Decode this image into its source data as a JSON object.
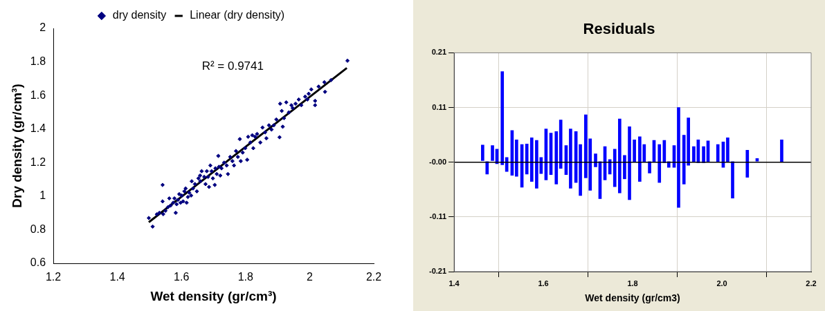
{
  "chart_data": [
    {
      "type": "scatter",
      "xlabel": "Wet density (gr/cm³)",
      "ylabel": "Dry density (gr/cm³)",
      "xlim": [
        1.2,
        2.2
      ],
      "xticks": [
        1.2,
        1.4,
        1.6,
        1.8,
        2,
        2.2
      ],
      "ylim": [
        0.6,
        2
      ],
      "yticks": [
        0.6,
        0.8,
        1,
        1.2,
        1.4,
        1.6,
        1.8,
        2
      ],
      "grid": false,
      "legend": "top",
      "annotations": [
        "R² = 0.9741"
      ],
      "series": [
        {
          "name": "dry density",
          "type": "scatter",
          "marker": "diamond",
          "color": "#000080",
          "x": [
            1.498,
            1.51,
            1.523,
            1.531,
            1.541,
            1.541,
            1.543,
            1.55,
            1.558,
            1.562,
            1.566,
            1.574,
            1.578,
            1.582,
            1.585,
            1.589,
            1.593,
            1.597,
            1.601,
            1.605,
            1.609,
            1.613,
            1.616,
            1.62,
            1.624,
            1.63,
            1.632,
            1.636,
            1.642,
            1.648,
            1.653,
            1.658,
            1.659,
            1.663,
            1.671,
            1.675,
            1.679,
            1.683,
            1.686,
            1.69,
            1.694,
            1.698,
            1.704,
            1.706,
            1.71,
            1.715,
            1.717,
            1.721,
            1.725,
            1.733,
            1.741,
            1.745,
            1.752,
            1.759,
            1.764,
            1.77,
            1.776,
            1.782,
            1.785,
            1.791,
            1.799,
            1.805,
            1.808,
            1.815,
            1.821,
            1.824,
            1.83,
            1.836,
            1.846,
            1.853,
            1.861,
            1.865,
            1.873,
            1.881,
            1.888,
            1.896,
            1.906,
            1.908,
            1.913,
            1.916,
            1.92,
            1.927,
            1.935,
            1.943,
            1.947,
            1.956,
            1.966,
            1.974,
            1.986,
            1.993,
            1.997,
            2.005,
            2.017,
            2.017,
            2.028,
            2.046,
            2.048,
            2.067,
            2.118
          ],
          "values": [
            0.87,
            0.819,
            0.892,
            0.901,
            1.067,
            0.969,
            0.893,
            0.913,
            0.935,
            0.987,
            0.944,
            0.961,
            0.987,
            0.901,
            0.952,
            0.978,
            1.012,
            0.961,
            1.004,
            0.969,
            1.029,
            1.046,
            0.961,
            0.995,
            1.021,
            1.004,
            1.089,
            1.046,
            1.072,
            1.029,
            1.106,
            1.123,
            1.089,
            1.149,
            1.115,
            1.072,
            1.149,
            1.115,
            1.055,
            1.183,
            1.149,
            1.106,
            1.067,
            1.166,
            1.132,
            1.24,
            1.175,
            1.123,
            1.166,
            1.2,
            1.183,
            1.132,
            1.234,
            1.209,
            1.183,
            1.269,
            1.234,
            1.34,
            1.209,
            1.26,
            1.286,
            1.217,
            1.354,
            1.32,
            1.363,
            1.286,
            1.354,
            1.371,
            1.32,
            1.409,
            1.38,
            1.345,
            1.422,
            1.397,
            1.422,
            1.457,
            1.351,
            1.551,
            1.508,
            1.414,
            1.465,
            1.559,
            1.499,
            1.542,
            1.525,
            1.551,
            1.576,
            1.542,
            1.593,
            1.576,
            1.61,
            1.636,
            1.568,
            1.542,
            1.653,
            1.679,
            1.622,
            1.692,
            1.807
          ]
        },
        {
          "name": "Linear (dry density)",
          "type": "line",
          "marker": "none",
          "color": "#000000",
          "x": [
            1.498,
            2.116
          ],
          "values": [
            0.845,
            1.764
          ]
        }
      ]
    },
    {
      "type": "bar",
      "title": "Residuals",
      "xlabel": "Wet density (gr/cm3)",
      "xlim": [
        1.4,
        2.2
      ],
      "xticks": [
        1.4,
        1.6,
        1.8,
        {
          "value": 2,
          "label": "2.0"
        },
        2.2
      ],
      "ylim": [
        -0.21,
        0.21
      ],
      "yticks": [
        -0.21,
        {
          "value": -0.105,
          "label": "-0.11"
        },
        {
          "value": 0,
          "label": "-0.00"
        },
        {
          "value": 0.105,
          "label": "0.11"
        },
        0.21
      ],
      "grid": true,
      "ref_lines": [
        {
          "axis": "y",
          "value": 0,
          "color": "#000000"
        }
      ],
      "color": "#0000ff",
      "x": [
        1.464,
        1.474,
        1.486,
        1.496,
        1.508,
        1.518,
        1.53,
        1.54,
        1.552,
        1.563,
        1.574,
        1.585,
        1.595,
        1.606,
        1.617,
        1.629,
        1.639,
        1.651,
        1.661,
        1.673,
        1.683,
        1.695,
        1.705,
        1.717,
        1.727,
        1.738,
        1.749,
        1.76,
        1.771,
        1.782,
        1.793,
        1.804,
        1.816,
        1.826,
        1.838,
        1.848,
        1.86,
        1.871,
        1.881,
        1.893,
        1.903,
        1.915,
        1.925,
        1.937,
        1.947,
        1.959,
        1.969,
        1.991,
        2.003,
        2.013,
        2.024,
        2.057,
        2.079,
        2.134
      ],
      "base": [
        0.003,
        -0.023,
        0.003,
        -0.003,
        -0.005,
        -0.018,
        -0.025,
        -0.027,
        -0.048,
        -0.023,
        -0.037,
        -0.05,
        -0.022,
        -0.034,
        -0.024,
        -0.042,
        -0.012,
        -0.024,
        -0.05,
        -0.039,
        -0.064,
        -0.03,
        -0.054,
        -0.009,
        -0.07,
        -0.034,
        -0.023,
        -0.047,
        -0.059,
        -0.032,
        -0.072,
        0.001,
        -0.037,
        0.0,
        -0.021,
        0.001,
        -0.039,
        -0.001,
        -0.01,
        -0.01,
        -0.087,
        -0.042,
        -0.006,
        0.001,
        -0.001,
        -0.001,
        0.001,
        0.001,
        -0.01,
        0.001,
        -0.069,
        -0.029,
        0.002,
        0.001
      ],
      "values": [
        0.03,
        0.024,
        0.029,
        0.028,
        0.179,
        0.027,
        0.086,
        0.07,
        0.082,
        0.058,
        0.084,
        0.092,
        0.031,
        0.098,
        0.08,
        0.101,
        0.093,
        0.056,
        0.114,
        0.098,
        0.098,
        0.121,
        0.099,
        0.025,
        0.071,
        0.064,
        0.028,
        0.072,
        0.142,
        0.045,
        0.14,
        0.042,
        0.086,
        0.034,
        0.022,
        0.041,
        0.073,
        0.043,
        0.011,
        0.042,
        0.192,
        0.094,
        0.091,
        0.029,
        0.044,
        0.031,
        0.04,
        0.033,
        0.049,
        0.046,
        0.07,
        0.052,
        0.005,
        0.042
      ]
    }
  ]
}
